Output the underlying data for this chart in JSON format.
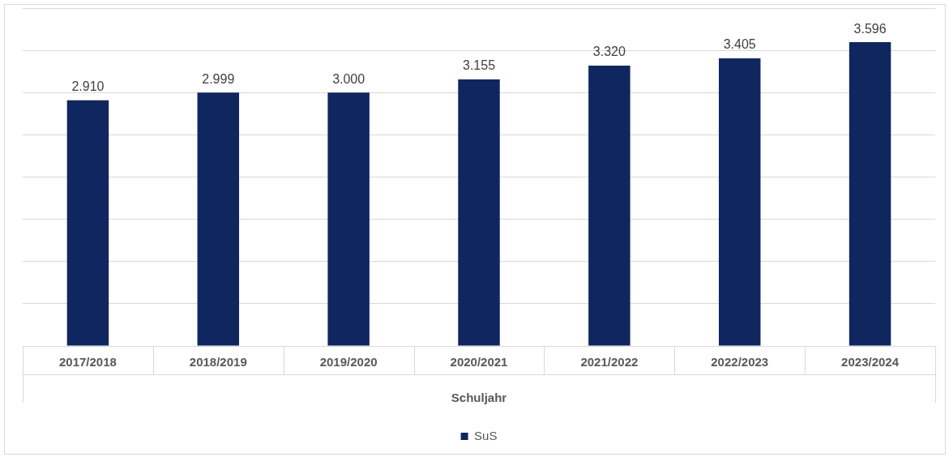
{
  "chart_data": {
    "type": "bar",
    "xlabel": "Schuljahr",
    "categories": [
      "2017/2018",
      "2018/2019",
      "2019/2020",
      "2020/2021",
      "2021/2022",
      "2022/2023",
      "2023/2024"
    ],
    "series": [
      {
        "name": "SuS",
        "color": "#10265f",
        "values": [
          2910,
          2999,
          3000,
          3155,
          3320,
          3405,
          3596
        ],
        "value_labels": [
          "2.910",
          "2.999",
          "3.000",
          "3.155",
          "3.320",
          "3.405",
          "3.596"
        ]
      }
    ],
    "ylim": [
      0,
      4000
    ],
    "grid": "y",
    "tick_labels": "x",
    "legend": "bottom"
  }
}
